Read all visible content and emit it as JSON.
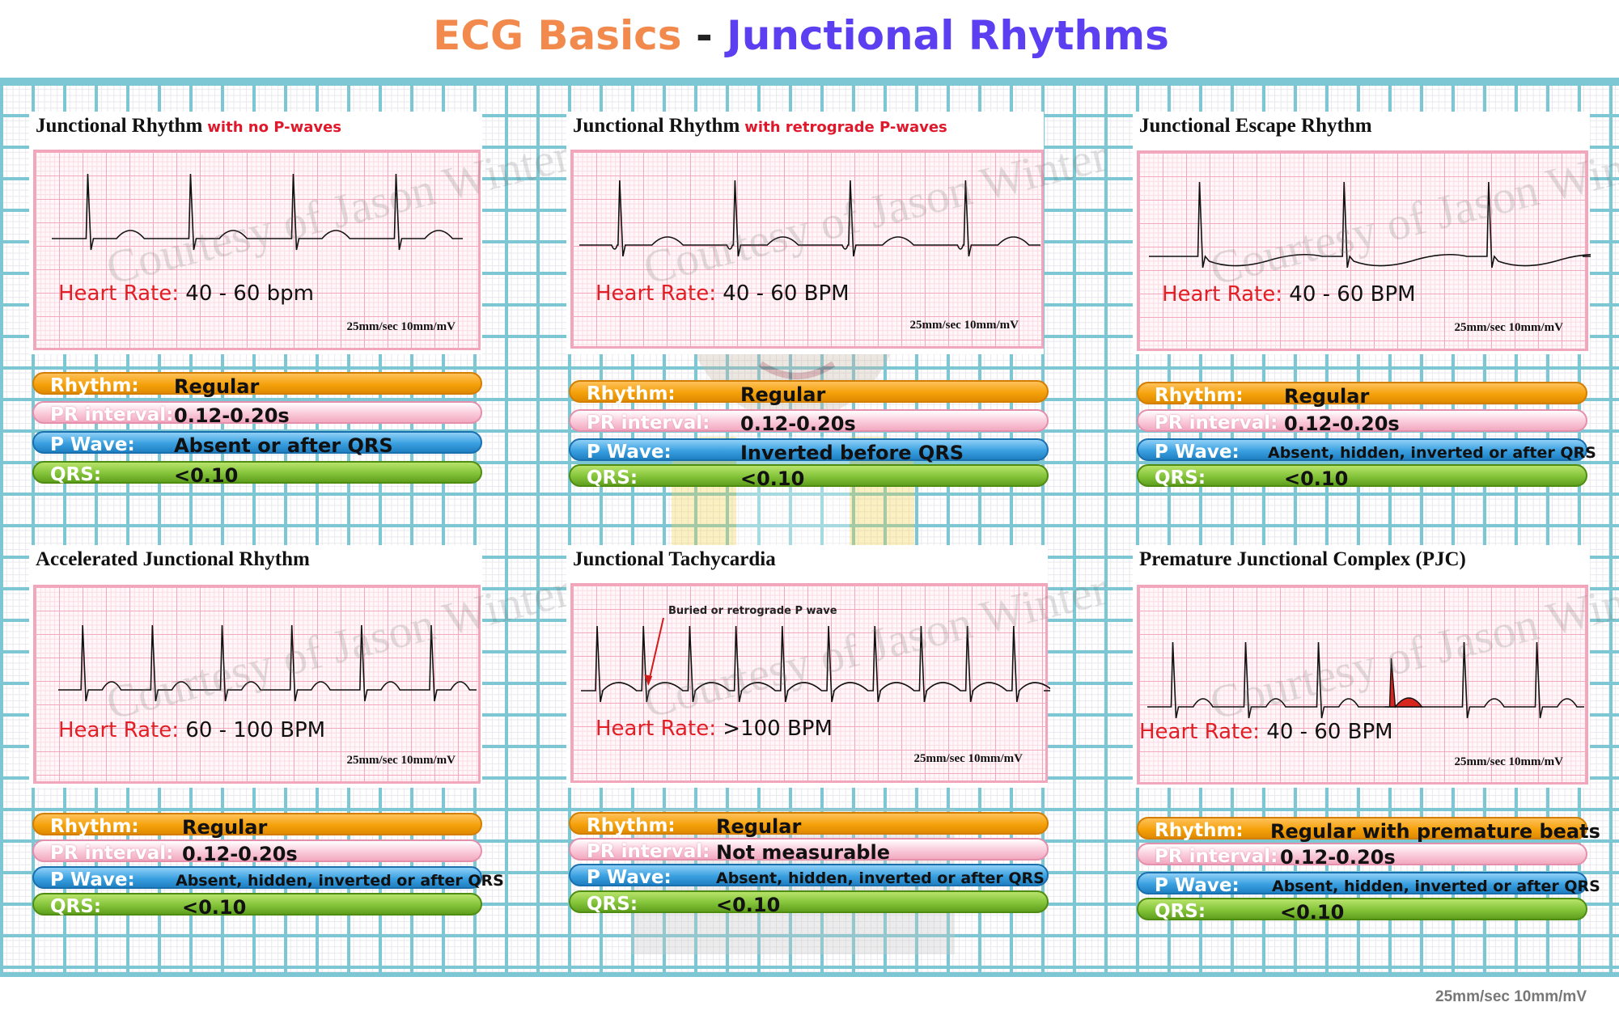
{
  "page_title": {
    "part1": "ECG Basics",
    "dash": " - ",
    "part2": "Junctional Rhythms"
  },
  "watermark_text": "Courtesy of Jason Winter",
  "footer_speed": "25mm/sec  10mm/mV",
  "panels": [
    {
      "title": "Junctional Rhythm",
      "subtitle": "with no P-waves",
      "hr_key": "Heart Rate:",
      "hr_value": "40 - 60 bpm",
      "speed": "25mm/sec  10mm/mV",
      "rhythm_key": "Rhythm:",
      "rhythm_value": "Regular",
      "pr_key": "PR interval:",
      "pr_value": "0.12-0.20s",
      "pwave_key": "P Wave:",
      "pwave_value": "Absent or after QRS",
      "qrs_key": "QRS:",
      "qrs_value": "<0.10"
    },
    {
      "title": "Junctional Rhythm",
      "subtitle": "with retrograde P-waves",
      "hr_key": "Heart Rate:",
      "hr_value": "40 - 60 BPM",
      "speed": "25mm/sec  10mm/mV",
      "rhythm_key": "Rhythm:",
      "rhythm_value": "Regular",
      "pr_key": "PR interval:",
      "pr_value": "0.12-0.20s",
      "pwave_key": "P Wave:",
      "pwave_value": "Inverted before QRS",
      "qrs_key": "QRS:",
      "qrs_value": "<0.10"
    },
    {
      "title": "Junctional Escape Rhythm",
      "subtitle": "",
      "hr_key": "Heart Rate:",
      "hr_value": "40 - 60 BPM",
      "speed": "25mm/sec  10mm/mV",
      "rhythm_key": "Rhythm:",
      "rhythm_value": "Regular",
      "pr_key": "PR interval:",
      "pr_value": "0.12-0.20s",
      "pwave_key": "P Wave:",
      "pwave_value": "Absent, hidden, inverted or after QRS",
      "qrs_key": "QRS:",
      "qrs_value": "<0.10"
    },
    {
      "title": "Accelerated Junctional Rhythm",
      "subtitle": "",
      "hr_key": "Heart Rate:",
      "hr_value": "60 - 100 BPM",
      "speed": "25mm/sec  10mm/mV",
      "rhythm_key": "Rhythm:",
      "rhythm_value": "Regular",
      "pr_key": "PR interval:",
      "pr_value": "0.12-0.20s",
      "pwave_key": "P Wave:",
      "pwave_value": "Absent, hidden, inverted or after QRS",
      "qrs_key": "QRS:",
      "qrs_value": "<0.10"
    },
    {
      "title": "Junctional Tachycardia",
      "subtitle": "",
      "annotation": "Buried or retrograde P wave",
      "hr_key": "Heart Rate:",
      "hr_value": ">100 BPM",
      "speed": "25mm/sec  10mm/mV",
      "rhythm_key": "Rhythm:",
      "rhythm_value": "Regular",
      "pr_key": "PR interval:",
      "pr_value": "Not measurable",
      "pwave_key": "P Wave:",
      "pwave_value": "Absent, hidden, inverted or after QRS",
      "qrs_key": "QRS:",
      "qrs_value": "<0.10"
    },
    {
      "title": "Premature Junctional Complex  (PJC)",
      "subtitle": "",
      "hr_key": "Heart Rate:",
      "hr_value": "40 - 60 BPM",
      "speed": "25mm/sec  10mm/mV",
      "rhythm_key": "Rhythm:",
      "rhythm_value": "Regular with premature beats",
      "pr_key": "PR interval:",
      "pr_value": "0.12-0.20s",
      "pwave_key": "P Wave:",
      "pwave_value": "Absent, hidden, inverted or after QRS",
      "qrs_key": "QRS:",
      "qrs_value": "<0.10"
    }
  ],
  "colors": {
    "title_orange": "#f28a4e",
    "title_purple": "#5b3ff0",
    "rhythm_pill": "#f5a20c",
    "pr_pill": "#fbd3e0",
    "pwave_pill": "#3aa0e0",
    "qrs_pill": "#84c43a",
    "heart_rate_label": "#e21f25",
    "grid_teal": "#7cc7d3",
    "strip_pink": "#f4a9be",
    "pjc_highlight": "#d7261e"
  }
}
